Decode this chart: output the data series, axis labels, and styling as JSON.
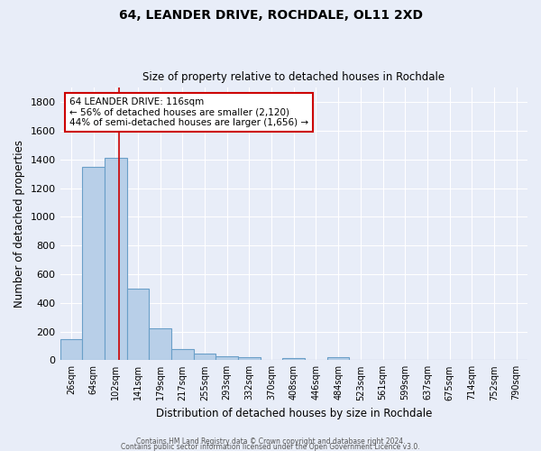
{
  "title1": "64, LEANDER DRIVE, ROCHDALE, OL11 2XD",
  "title2": "Size of property relative to detached houses in Rochdale",
  "xlabel": "Distribution of detached houses by size in Rochdale",
  "ylabel": "Number of detached properties",
  "categories": [
    "26sqm",
    "64sqm",
    "102sqm",
    "141sqm",
    "179sqm",
    "217sqm",
    "255sqm",
    "293sqm",
    "332sqm",
    "370sqm",
    "408sqm",
    "446sqm",
    "484sqm",
    "523sqm",
    "561sqm",
    "599sqm",
    "637sqm",
    "675sqm",
    "714sqm",
    "752sqm",
    "790sqm"
  ],
  "values": [
    145,
    1350,
    1410,
    500,
    225,
    80,
    48,
    28,
    18,
    5,
    12,
    5,
    18,
    0,
    0,
    0,
    0,
    0,
    0,
    0,
    0
  ],
  "bar_color": "#b8cfe8",
  "bar_edge_color": "#6a9fc8",
  "bg_color": "#e8edf8",
  "grid_color": "#ffffff",
  "redline_x": 2.15,
  "annotation_title": "64 LEANDER DRIVE: 116sqm",
  "annotation_line1": "← 56% of detached houses are smaller (2,120)",
  "annotation_line2": "44% of semi-detached houses are larger (1,656) →",
  "annotation_box_color": "#ffffff",
  "annotation_box_edge": "#cc0000",
  "ylim": [
    0,
    1900
  ],
  "yticks": [
    0,
    200,
    400,
    600,
    800,
    1000,
    1200,
    1400,
    1600,
    1800
  ],
  "footnote1": "Contains HM Land Registry data © Crown copyright and database right 2024.",
  "footnote2": "Contains public sector information licensed under the Open Government Licence v3.0."
}
